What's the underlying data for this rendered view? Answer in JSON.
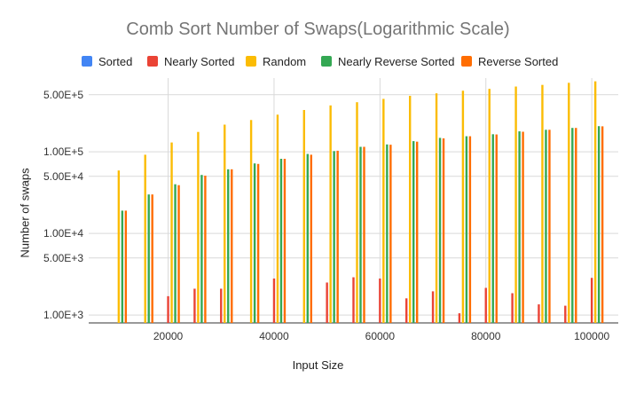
{
  "chart_data": {
    "type": "bar",
    "title": "Comb Sort Number of Swaps(Logarithmic Scale)",
    "xlabel": "Input Size",
    "ylabel": "Number of swaps",
    "y_scale": "log",
    "ylim": [
      800,
      800000
    ],
    "y_ticks": [
      {
        "value": 1000,
        "label": "1.00E+3"
      },
      {
        "value": 5000,
        "label": "5.00E+3"
      },
      {
        "value": 10000,
        "label": "1.00E+4"
      },
      {
        "value": 50000,
        "label": "5.00E+4"
      },
      {
        "value": 100000,
        "label": "1.00E+5"
      },
      {
        "value": 500000,
        "label": "5.00E+5"
      }
    ],
    "xlim": [
      5000,
      105000
    ],
    "x_ticks": [
      {
        "value": 20000,
        "label": "20000"
      },
      {
        "value": 40000,
        "label": "40000"
      },
      {
        "value": 60000,
        "label": "60000"
      },
      {
        "value": 80000,
        "label": "80000"
      },
      {
        "value": 100000,
        "label": "100000"
      }
    ],
    "x": [
      10000,
      15000,
      20000,
      25000,
      30000,
      35000,
      40000,
      45000,
      50000,
      55000,
      60000,
      65000,
      70000,
      75000,
      80000,
      85000,
      90000,
      95000,
      100000
    ],
    "legend_position": "top",
    "grid": true,
    "series": [
      {
        "name": "Sorted",
        "color": "#4285f4",
        "values": [
          0,
          0,
          0,
          0,
          0,
          0,
          0,
          0,
          0,
          0,
          0,
          0,
          0,
          0,
          0,
          0,
          0,
          0,
          0
        ]
      },
      {
        "name": "Nearly Sorted",
        "color": "#ea4335",
        "values": [
          0,
          0,
          1700,
          2100,
          2100,
          0,
          2800,
          0,
          2500,
          2900,
          2800,
          1600,
          1950,
          1050,
          2150,
          1850,
          1350,
          1300,
          2850
        ]
      },
      {
        "name": "Random",
        "color": "#fbbc04",
        "values": [
          59000,
          92000,
          130000,
          175000,
          215000,
          245000,
          285000,
          325000,
          370000,
          405000,
          445000,
          485000,
          520000,
          560000,
          590000,
          630000,
          660000,
          700000,
          730000
        ]
      },
      {
        "name": "Nearly Reverse Sorted",
        "color": "#34a853",
        "values": [
          19000,
          30000,
          40000,
          52000,
          61000,
          72000,
          82000,
          94000,
          102000,
          115000,
          123000,
          135000,
          148000,
          155000,
          164000,
          178000,
          186000,
          196000,
          206000
        ]
      },
      {
        "name": "Reverse Sorted",
        "color": "#ff6d01",
        "values": [
          19000,
          30000,
          39000,
          51000,
          61000,
          71000,
          82000,
          92000,
          103000,
          115000,
          122000,
          133000,
          146000,
          155000,
          163000,
          176000,
          186000,
          196000,
          205000
        ]
      }
    ]
  }
}
